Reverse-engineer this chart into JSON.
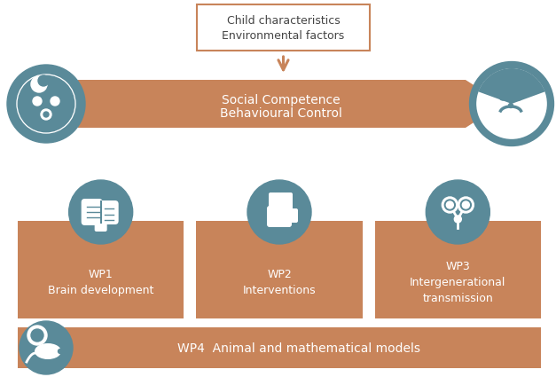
{
  "bg_color": "#ffffff",
  "arrow_color": "#c8845a",
  "box_color": "#c8845a",
  "circle_color": "#5a8a99",
  "text_color_white": "#ffffff",
  "text_color_dark": "#444444",
  "title_box_text": "Child characteristics\nEnvironmental factors",
  "arrow_text_line1": "Social Competence",
  "arrow_text_line2": "Behavioural Control",
  "wp1_title": "WP1\nBrain development",
  "wp2_title": "WP2\nInterventions",
  "wp3_title": "WP3\nIntergenerational\ntransmission",
  "wp4_title": "WP4  Animal and mathematical models",
  "figw": 6.27,
  "figh": 4.35,
  "dpi": 100
}
